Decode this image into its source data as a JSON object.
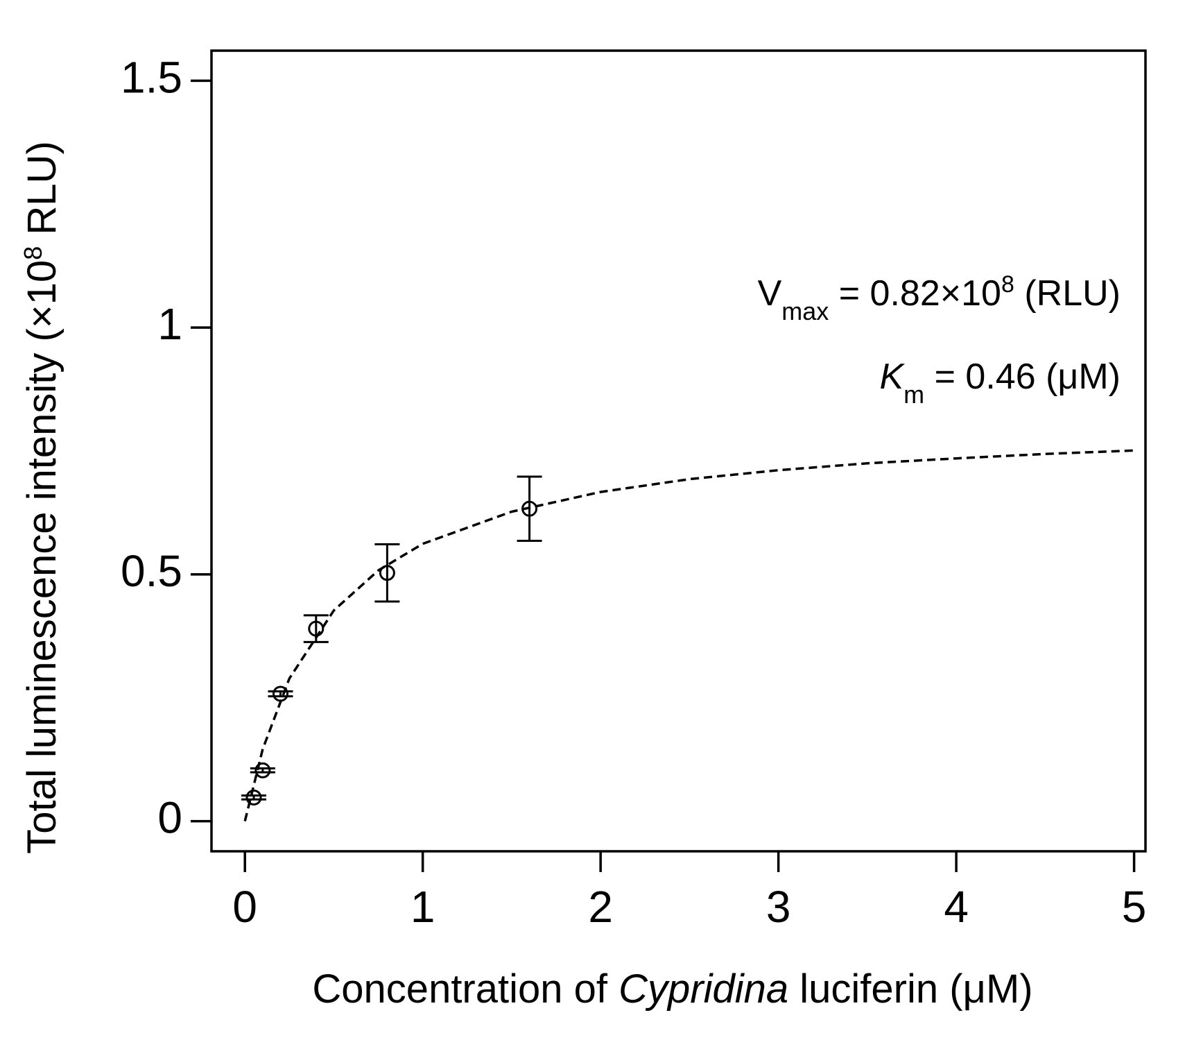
{
  "chart_data": {
    "type": "scatter",
    "y_label": [
      "Total luminescence intensity (×10",
      "8",
      " RLU)"
    ],
    "x_label": [
      "Concentration of ",
      "Cypridina",
      " luciferin (μM)"
    ],
    "annotations": [
      [
        "V",
        "max",
        " = 0.82×10",
        "8",
        " (RLU)"
      ],
      [
        "K",
        "m",
        " = 0.46 (μM)"
      ]
    ],
    "xlim": [
      -0.188,
      5.064
    ],
    "ylim": [
      -0.061,
      1.561
    ],
    "xticks": [
      0,
      1,
      2,
      3,
      4,
      5
    ],
    "yticks": [
      0,
      0.5,
      1,
      1.5
    ],
    "color": "#000000",
    "points": {
      "x": [
        0.05,
        0.1,
        0.2,
        0.4,
        0.8,
        1.6
      ],
      "y": [
        0.048,
        0.103,
        0.258,
        0.39,
        0.503,
        0.633
      ],
      "errors": [
        0.004,
        0.004,
        0.005,
        0.027,
        0.058,
        0.065
      ]
    },
    "fit": {
      "x": [
        0,
        0.1,
        0.25,
        0.5,
        0.75,
        1,
        1.5,
        2,
        2.5,
        3,
        3.5,
        4,
        4.5,
        5
      ],
      "y": [
        0,
        0.146,
        0.289,
        0.427,
        0.508,
        0.562,
        0.627,
        0.667,
        0.693,
        0.711,
        0.725,
        0.735,
        0.744,
        0.751
      ]
    }
  }
}
